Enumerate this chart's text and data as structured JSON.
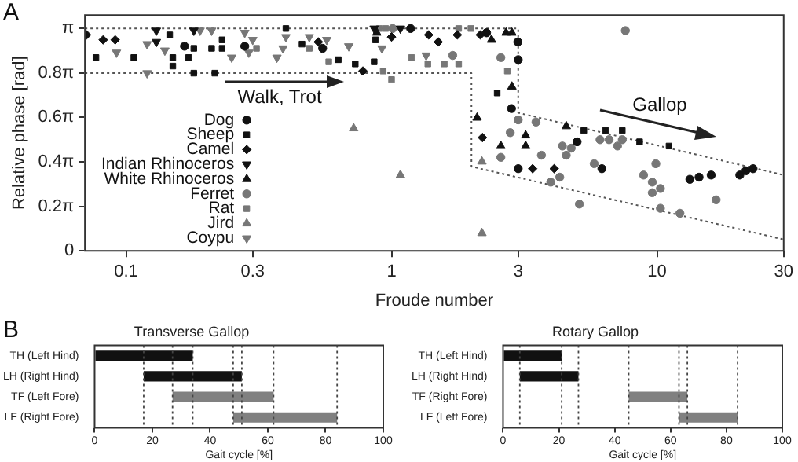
{
  "chart_data": [
    {
      "type": "scatter",
      "xlabel": "Froude number",
      "ylabel": "Relative phase [rad]",
      "log": "x",
      "legend": "bottom left",
      "grid": false,
      "xlim": [
        0.07,
        30
      ],
      "xticks": [
        0.1,
        0.3,
        1,
        3,
        10,
        30
      ],
      "ylim": [
        0,
        3.33
      ],
      "yticks": [
        0,
        {
          "value": 0.6283,
          "label": "0.2π"
        },
        {
          "value": 1.2566,
          "label": "0.4π"
        },
        {
          "value": 1.885,
          "label": "0.6π"
        },
        {
          "value": 2.5133,
          "label": "0.8π"
        },
        {
          "value": 3.1416,
          "label": "π"
        }
      ],
      "annotations": [
        "A",
        "Walk, Trot",
        "Gallop"
      ],
      "series": [
        {
          "name": "Dog",
          "color": "#111111",
          "marker": "circle",
          "x": [
            0.166,
            0.28,
            0.55,
            1.18,
            2.28,
            2.99,
            3.0,
            2.83,
            3.0,
            5.0,
            6.2,
            13.3,
            14.4,
            16,
            20.5,
            21.6,
            23
          ],
          "values": [
            2.89,
            2.89,
            2.86,
            3.14,
            3.08,
            2.95,
            2.7,
            2.01,
            1.16,
            1.54,
            1.16,
            1.01,
            1.04,
            1.07,
            1.07,
            1.13,
            1.16
          ]
        },
        {
          "name": "Sheep",
          "color": "#111111",
          "marker": "square",
          "x": [
            0.077,
            0.107,
            0.146,
            0.15,
            0.15,
            0.172,
            0.18,
            0.18,
            0.21,
            0.216,
            0.23,
            0.23,
            0.4,
            0.46,
            0.63,
            0.73,
            0.86,
            0.87,
            2.5,
            5.3,
            6.4,
            7.4,
            8.6,
            11.1
          ],
          "values": [
            2.73,
            2.73,
            3.05,
            2.73,
            2.61,
            2.73,
            2.86,
            2.51,
            2.86,
            2.51,
            2.86,
            2.98,
            3.14,
            2.92,
            2.7,
            2.64,
            2.67,
            2.98,
            2.23,
            1.7,
            1.7,
            1.7,
            1.54,
            1.48
          ]
        },
        {
          "name": "Camel",
          "color": "#111111",
          "marker": "diamond",
          "x": [
            0.071,
            0.082,
            0.091,
            0.53,
            0.78,
            1.0,
            1.38,
            1.5,
            1.77,
            2.16,
            2.2,
            3.4,
            4.1
          ],
          "values": [
            3.05,
            2.98,
            2.98,
            2.95,
            2.54,
            3.02,
            3.05,
            2.95,
            3.05,
            3.05,
            1.6,
            1.16,
            1.16
          ]
        },
        {
          "name": "Indian Rhinoceros",
          "color": "#111111",
          "marker": "triangle-down",
          "x": [
            0.13,
            0.13,
            0.18,
            0.86,
            1.08
          ],
          "values": [
            3.11,
            2.95,
            3.11,
            3.14,
            3.14
          ]
        },
        {
          "name": "White Rhinoceros",
          "color": "#111111",
          "marker": "triangle",
          "x": [
            0.88,
            2.38,
            2.7,
            2.84,
            2.84,
            2.1,
            2.58,
            3.2,
            3.2,
            4.55
          ],
          "values": [
            3.08,
            2.98,
            3.08,
            3.08,
            2.32,
            1.88,
            1.48,
            1.63,
            1.48,
            1.76
          ]
        },
        {
          "name": "Ferret",
          "color": "#777777",
          "marker": "circle",
          "x": [
            1.01,
            1.7,
            2.58,
            7.6,
            3.0,
            2.8,
            3.5,
            2.58,
            3.67,
            4.4,
            4.75,
            4.55,
            3.98,
            4.3,
            5.1,
            5.8,
            6.1,
            6.6,
            7.1,
            7.4,
            8.9,
            9.6,
            9.9,
            10.3,
            9.6,
            10.3,
            12.2,
            16.7
          ],
          "values": [
            3.14,
            2.76,
            2.73,
            3.11,
            1.85,
            1.67,
            1.82,
            1.32,
            1.35,
            1.48,
            1.45,
            1.35,
            0.97,
            1.04,
            0.66,
            1.23,
            1.57,
            1.57,
            1.48,
            1.57,
            1.07,
            0.97,
            1.23,
            0.88,
            0.82,
            0.6,
            0.53,
            0.72
          ]
        },
        {
          "name": "Rat",
          "color": "#777777",
          "marker": "square",
          "x": [
            0.31,
            0.49,
            0.58,
            0.9,
            0.95,
            0.93,
            1.0,
            1.19,
            1.37,
            1.58,
            1.79,
            1.79,
            1.99,
            2.73
          ],
          "values": [
            2.86,
            2.86,
            2.67,
            3.14,
            3.14,
            2.54,
            2.42,
            2.73,
            2.64,
            2.64,
            2.64,
            3.14,
            3.14,
            2.54
          ]
        },
        {
          "name": "Jird",
          "color": "#777777",
          "marker": "triangle",
          "x": [
            0.72,
            1.08,
            2.19,
            2.19
          ],
          "values": [
            1.73,
            1.07,
            1.26,
            0.25
          ]
        },
        {
          "name": "Coypu",
          "color": "#777777",
          "marker": "triangle-down",
          "x": [
            0.12,
            0.12,
            0.092,
            0.14,
            0.19,
            0.21,
            0.25,
            0.29,
            0.28,
            0.3,
            0.37,
            0.39,
            0.4,
            0.69,
            0.49,
            0.57,
            0.92,
            1.35
          ],
          "values": [
            2.51,
            2.92,
            2.8,
            2.83,
            3.11,
            3.11,
            2.73,
            2.8,
            3.08,
            2.98,
            2.73,
            2.86,
            3.02,
            2.89,
            3.02,
            2.98,
            2.86,
            2.76
          ]
        },
        {
          "type": "line",
          "color": "#555555",
          "line_style": "dotted",
          "marker": "none",
          "x": [
            0.07,
            3,
            3,
            30
          ],
          "values": [
            3.14,
            3.14,
            1.95,
            1.07
          ]
        },
        {
          "type": "line",
          "color": "#555555",
          "line_style": "dotted",
          "marker": "none",
          "x": [
            0.07,
            2,
            2,
            30
          ],
          "values": [
            2.51,
            2.51,
            1.19,
            0.16
          ]
        }
      ]
    },
    {
      "type": "bar",
      "orientation": "horizontal",
      "title": "Transverse Gallop",
      "xlabel": "Gait cycle [%]",
      "grid": false,
      "annotations": [
        "B"
      ],
      "categories": [
        "TH (Left Hind)",
        "LH (Right Hind)",
        "TF (Left Fore)",
        "LF (Right Fore)"
      ],
      "base": [
        0,
        17,
        27,
        48
      ],
      "values": [
        34,
        34,
        35,
        36
      ],
      "colors": [
        "#111111",
        "#111111",
        "#808080",
        "#808080"
      ],
      "xlim": [
        0,
        100
      ],
      "xticks": [
        0,
        20,
        40,
        60,
        80,
        100
      ],
      "ref_lines": [
        {
          "axis": "x",
          "value": 17,
          "line_style": "dotted",
          "color": "#444444"
        },
        {
          "axis": "x",
          "value": 27,
          "line_style": "dotted",
          "color": "#444444"
        },
        {
          "axis": "x",
          "value": 34,
          "line_style": "dotted",
          "color": "#444444"
        },
        {
          "axis": "x",
          "value": 48,
          "line_style": "dotted",
          "color": "#444444"
        },
        {
          "axis": "x",
          "value": 51,
          "line_style": "dotted",
          "color": "#444444"
        },
        {
          "axis": "x",
          "value": 62,
          "line_style": "dotted",
          "color": "#444444"
        },
        {
          "axis": "x",
          "value": 84,
          "line_style": "dotted",
          "color": "#444444"
        }
      ]
    },
    {
      "type": "bar",
      "orientation": "horizontal",
      "title": "Rotary Gallop",
      "xlabel": "Gait cycle [%]",
      "grid": false,
      "categories": [
        "TH (Left Hind)",
        "LH (Right Hind)",
        "TF (Right Fore)",
        "LF (Left Fore)"
      ],
      "base": [
        0,
        6,
        45,
        63
      ],
      "values": [
        21,
        21,
        21,
        21
      ],
      "colors": [
        "#111111",
        "#111111",
        "#808080",
        "#808080"
      ],
      "xlim": [
        0,
        100
      ],
      "xticks": [
        0,
        20,
        40,
        60,
        80,
        100
      ],
      "ref_lines": [
        {
          "axis": "x",
          "value": 6,
          "line_style": "dotted",
          "color": "#444444"
        },
        {
          "axis": "x",
          "value": 21,
          "line_style": "dotted",
          "color": "#444444"
        },
        {
          "axis": "x",
          "value": 27,
          "line_style": "dotted",
          "color": "#444444"
        },
        {
          "axis": "x",
          "value": 45,
          "line_style": "dotted",
          "color": "#444444"
        },
        {
          "axis": "x",
          "value": 63,
          "line_style": "dotted",
          "color": "#444444"
        },
        {
          "axis": "x",
          "value": 66,
          "line_style": "dotted",
          "color": "#444444"
        },
        {
          "axis": "x",
          "value": 84,
          "line_style": "dotted",
          "color": "#444444"
        }
      ]
    }
  ]
}
